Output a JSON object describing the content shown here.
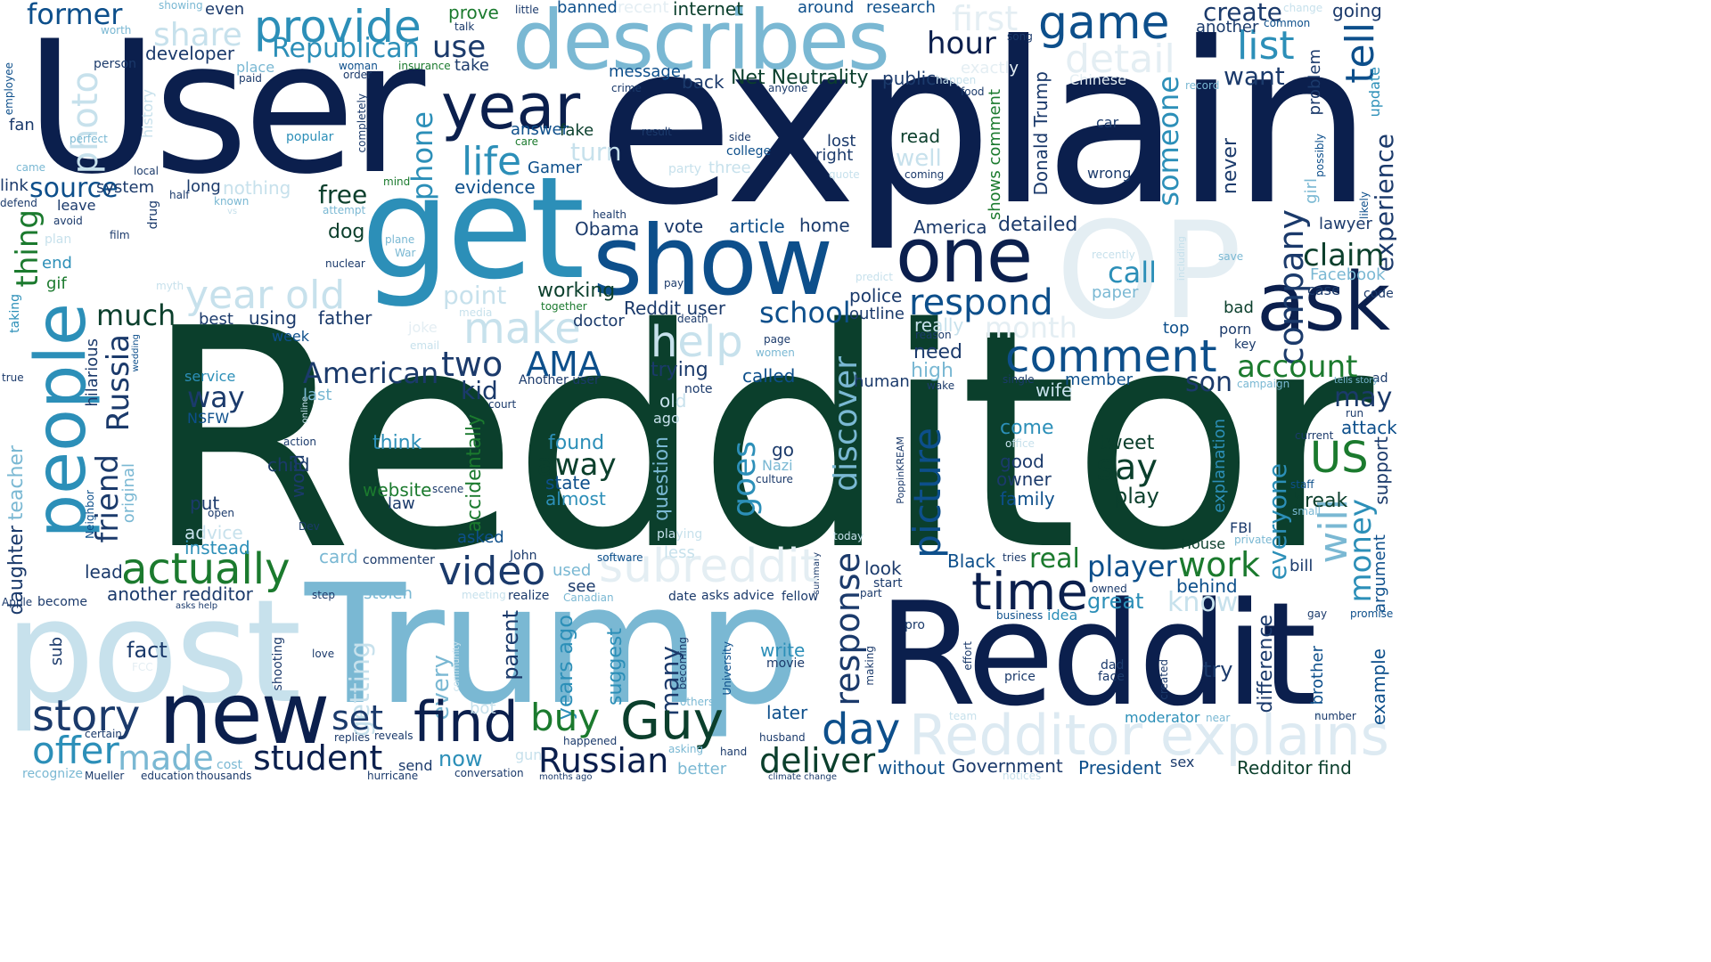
{
  "colors": {
    "dark_navy": "#0b1f4d",
    "dark_green": "#0b3f2c",
    "deep_blue": "#0d4f8b",
    "teal_blue": "#2c8fb8",
    "light_blue": "#7ab8d3",
    "pale_blue": "#c7e1ec",
    "forest_green": "#1b7a2e",
    "navy": "#1b3a6b"
  },
  "words": {
    "redditor": "Redditor",
    "explain": "explain",
    "user": "User",
    "trump": "Trump",
    "reddit": "Reddit",
    "post": "post",
    "describes": "describes",
    "get": "get",
    "show": "show",
    "op": "OP",
    "one": "one",
    "ask": "ask",
    "people": "people",
    "new": "new",
    "redditor_explains": "Redditor explains",
    "year": "year",
    "provide": "provide",
    "game": "game",
    "former": "former",
    "life": "life",
    "make": "make",
    "help": "help",
    "comment": "comment",
    "video": "video",
    "time": "time",
    "story": "story",
    "find": "find",
    "guy": "Guy",
    "student": "student",
    "offer": "offer",
    "made": "made",
    "day": "day",
    "deliver": "deliver",
    "russian": "Russian",
    "actually": "actually",
    "year_old": "year old",
    "subreddit": "subreddit",
    "picture": "picture",
    "respond": "respond",
    "share": "share",
    "republican": "Republican",
    "detail": "detail",
    "list": "list",
    "hour": "hour",
    "source": "source",
    "friend": "friend",
    "russia": "Russia",
    "thing": "thing",
    "response": "response",
    "say": "say",
    "us": "US",
    "will": "will",
    "money": "money",
    "account": "account",
    "claim": "claim",
    "company": "company",
    "work": "work",
    "player": "player",
    "american": "American",
    "two": "two",
    "ama": "AMA",
    "way": "way",
    "away": "away",
    "buy": "buy",
    "school": "school",
    "discover": "discover",
    "goes": "goes",
    "set": "set",
    "fact": "fact",
    "real": "real",
    "tell": "tell",
    "someone": "someone",
    "experience": "experience",
    "photo": "photo",
    "phone": "phone",
    "use": "use",
    "first": "first",
    "create": "create",
    "want": "want",
    "call": "call",
    "know": "know",
    "month": "month",
    "much": "much",
    "free": "free",
    "net_neutrality": "Net Neutrality",
    "government": "Government",
    "president": "President",
    "redditor_find": "Redditor find",
    "reddit_user": "Reddit user",
    "another_redditor": "another redditor",
    "dog": "dog",
    "point": "point",
    "evidence": "evidence",
    "article": "article",
    "obama": "Obama",
    "vote": "vote",
    "home": "home",
    "america": "America",
    "detailed": "detailed",
    "police": "police",
    "outline": "outline",
    "kid": "kid",
    "son": "son",
    "wife": "wife",
    "need": "need",
    "high": "high",
    "really": "really",
    "may": "may",
    "everyone": "everyone",
    "break": "break",
    "attack": "attack",
    "support": "support",
    "try": "try",
    "difference": "difference",
    "brother": "brother",
    "example": "example",
    "moderator": "moderator",
    "many": "many",
    "suggest": "suggest",
    "years_ago": "years ago",
    "parent": "parent",
    "every": "every",
    "getting": "getting",
    "write": "write",
    "movie": "movie",
    "later": "later",
    "now": "now",
    "send": "send",
    "sex": "sex",
    "without": "without",
    "fan": "fan",
    "developer": "developer",
    "place": "place",
    "person": "person",
    "good": "good",
    "owner": "owner",
    "family": "family",
    "tweet": "tweet",
    "come": "come",
    "play": "play",
    "great": "great",
    "behind": "behind",
    "bill": "bill",
    "fbi": "FBI",
    "house": "House",
    "black": "Black",
    "look": "look",
    "start": "start",
    "found": "found",
    "state": "state",
    "almost": "almost",
    "website": "website",
    "law": "law",
    "think": "think",
    "child": "child",
    "word": "word",
    "put": "put",
    "advice": "advice",
    "instead": "instead",
    "card": "card",
    "commenter": "commenter",
    "lead": "lead",
    "teacher": "teacher",
    "daughter": "daughter",
    "original": "original",
    "hilarious": "hilarious",
    "service": "service",
    "nsfw": "NSFW",
    "last": "last",
    "week": "week",
    "using": "using",
    "father": "father",
    "best": "best",
    "working": "working",
    "doctor": "doctor",
    "trying": "trying",
    "called": "called",
    "human": "human",
    "member": "member",
    "note": "note",
    "old": "old",
    "ago": "ago",
    "asked": "asked",
    "used": "used",
    "see": "see",
    "john": "John",
    "less": "less",
    "question": "question",
    "accidentally": "accidentally",
    "stolen": "stolen",
    "realize": "realize",
    "date": "date",
    "asks_advice": "asks advice",
    "fellow": "fellow",
    "summary": "summary",
    "idea": "idea",
    "pro": "pro",
    "effort": "effort",
    "price": "price",
    "dad": "dad",
    "face": "face",
    "created": "created",
    "near": "near",
    "team": "team",
    "hand": "hand",
    "asking": "asking",
    "better": "better",
    "others": "others",
    "happened": "happened",
    "conversation": "conversation",
    "gun": "gun",
    "bot": "bot",
    "love": "love",
    "shooting": "shooting",
    "sub": "sub",
    "cost": "cost",
    "recognize": "recognize",
    "mueller": "Mueller",
    "education": "education",
    "thousands": "thousands",
    "hurricane": "hurricane",
    "months_ago": "months ago",
    "climate_change": "climate change",
    "notices": "notices",
    "certain": "certain",
    "reveals": "reveals",
    "replies": "replies",
    "husband": "husband",
    "number": "number",
    "business": "business",
    "owned": "owned",
    "gay": "gay",
    "promise": "promise",
    "argument": "argument",
    "staff": "staff",
    "small": "small",
    "private": "private",
    "software": "software",
    "canadian": "Canadian",
    "meeting": "meeting",
    "step": "step",
    "become": "become",
    "apple": "Apple",
    "asks_help": "asks help",
    "fcc": "FCC",
    "community": "community",
    "university": "University",
    "becoming": "becoming",
    "making": "making",
    "part": "part",
    "tries": "tries",
    "playing": "playing",
    "today": "today",
    "dev": "Dev",
    "neighbor": "Neighbor",
    "scene": "scene",
    "culture": "culture",
    "nazi": "Nazi",
    "go": "go",
    "action": "action",
    "online": "online",
    "open": "open",
    "poppinkream": "PoppinKREAM",
    "another_user": "Another user",
    "court": "court",
    "office": "office",
    "single": "single",
    "wake": "wake",
    "tells_story": "tells story",
    "campaign": "campaign",
    "ad": "ad",
    "run": "run",
    "current": "current",
    "explanation": "explanation",
    "key": "key",
    "porn": "porn",
    "top": "top",
    "bad": "bad",
    "code": "code",
    "case": "case",
    "facebook": "Facebook",
    "lawyer": "lawyer",
    "girl": "girl",
    "possibly": "possibly",
    "recently": "recently",
    "paper": "paper",
    "save": "save",
    "including": "including",
    "never": "never",
    "wrong": "wrong",
    "car": "car",
    "shows_comment": "shows comment",
    "coming": "coming",
    "well": "well",
    "read": "read",
    "donald_trump": "Donald Trump",
    "chinese": "Chinese",
    "exactly": "exactly",
    "happen": "happen",
    "food": "food",
    "record": "record",
    "problem": "problem",
    "update": "update",
    "going": "going",
    "another": "another",
    "common": "common",
    "change": "change",
    "song": "song",
    "little": "little",
    "banned": "banned",
    "recent": "recent",
    "internet": "internet",
    "around": "around",
    "research": "research",
    "prove": "prove",
    "talk": "talk",
    "showing": "showing",
    "worth": "worth",
    "even": "even",
    "woman": "woman",
    "order": "order",
    "paid": "paid",
    "insurance": "insurance",
    "take": "take",
    "message": "message",
    "back": "back",
    "public": "public",
    "crime": "crime",
    "anyone": "anyone",
    "answer": "answer",
    "fake": "fake",
    "care": "care",
    "turn": "turn",
    "gamer": "Gamer",
    "result": "result",
    "side": "side",
    "college": "college",
    "three": "three",
    "party": "party",
    "lost": "lost",
    "right": "right",
    "quote": "quote",
    "completely": "completely",
    "popular": "popular",
    "history": "history",
    "perfect": "perfect",
    "employee": "employee",
    "link": "link",
    "came": "came",
    "defend": "defend",
    "avoid": "avoid",
    "plan": "plan",
    "end": "end",
    "gif": "gif",
    "taking": "taking",
    "true": "true",
    "system": "system",
    "local": "local",
    "drug": "drug",
    "half": "half",
    "known": "known",
    "vs": "vs",
    "mind": "mind",
    "attempt": "attempt",
    "film": "film",
    "nuclear": "nuclear",
    "myth": "myth",
    "wedding": "wedding",
    "joke": "joke",
    "email": "email",
    "media": "media",
    "plane": "plane",
    "war": "War",
    "predict": "predict",
    "pay": "pay",
    "health": "health",
    "together": "together",
    "death": "death",
    "page": "page",
    "women": "women",
    "reason": "reason",
    "long": "long",
    "nothing": "nothing",
    "leave": "leave",
    "likely": "likely"
  }
}
